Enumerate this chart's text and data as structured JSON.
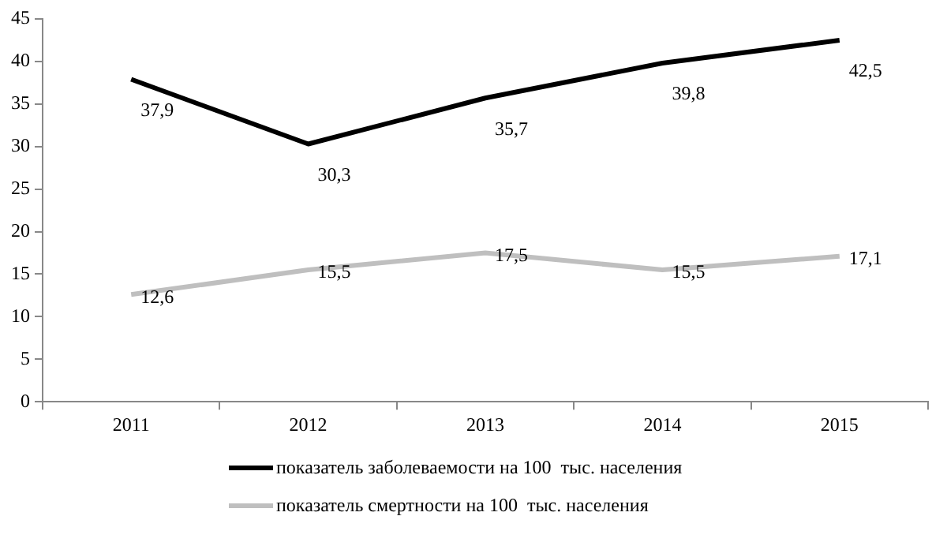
{
  "chart_data": {
    "type": "line",
    "categories": [
      "2011",
      "2012",
      "2013",
      "2014",
      "2015"
    ],
    "series": [
      {
        "name": "показатель заболеваемости на 100  тыс. населения",
        "color": "#000000",
        "values": [
          37.9,
          30.3,
          35.7,
          39.8,
          42.5
        ],
        "value_labels": [
          "37,9",
          "30,3",
          "35,7",
          "39,8",
          "42,5"
        ]
      },
      {
        "name": "показатель смертности на 100  тыс. населения",
        "color": "#bfbfbf",
        "values": [
          12.6,
          15.5,
          17.5,
          15.5,
          17.1
        ],
        "value_labels": [
          "12,6",
          "15,5",
          "17,5",
          "15,5",
          "17,1"
        ]
      }
    ],
    "ylim": [
      0,
      45
    ],
    "yticks": [
      0,
      5,
      10,
      15,
      20,
      25,
      30,
      35,
      40,
      45
    ],
    "grid": false,
    "legend": "bottom",
    "marker": "none",
    "line_style": "solid"
  }
}
